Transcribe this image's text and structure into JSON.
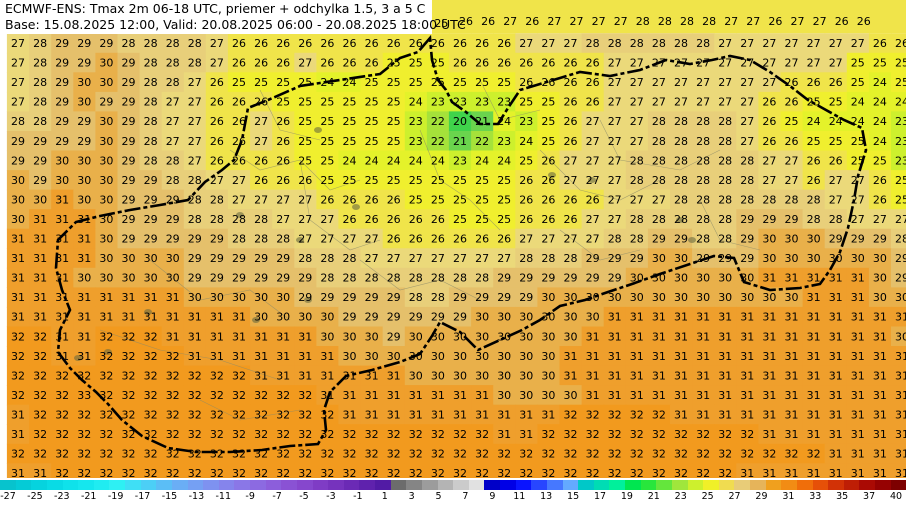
{
  "title": {
    "line1": "ECMWF-ENS: Tmax 2m 06-18 UTC, priemer + odchylka 1.5, 3 a 5 C",
    "line2": "Base: 15.08.2025 12:00, Valid: 20.08.2025 06:00 - 20.08.2025 18:00 UTC"
  },
  "colors": {
    "c20": "#40d34b",
    "c21": "#6ad44d",
    "c22": "#a5e23a",
    "c23": "#cdf02d",
    "c24": "#e4f22a",
    "c25": "#f0ef2e",
    "c26": "#f0e44a",
    "c27": "#ebd97a",
    "c28": "#e8cf7a",
    "c29": "#e5c06b",
    "c30": "#e9b04a",
    "c31": "#ef9f2c",
    "c32": "#f29a1e",
    "border": "#000000",
    "district": "#8a8a6a",
    "forest": "#6b6b40"
  },
  "legend": {
    "colors": [
      "#07c3cd",
      "#05cbd6",
      "#06d3de",
      "#09dbe5",
      "#0fe2ea",
      "#15e7ee",
      "#20ecf1",
      "#2ef0f3",
      "#3fdff5",
      "#4ccff6",
      "#5bbef6",
      "#6aaef5",
      "#75a0f3",
      "#7e92f0",
      "#8584ec",
      "#8a77e7",
      "#8c6ae1",
      "#8c5edb",
      "#8a52d4",
      "#8647cd",
      "#7f3cc5",
      "#7633bd",
      "#6b2ab5",
      "#5f22ad",
      "#521ba5",
      "#6c6c6c",
      "#858585",
      "#9c9c9c",
      "#b4b4b4",
      "#cbcbcb",
      "#e1e1e1",
      "#0000c8",
      "#0000e6",
      "#0a14ff",
      "#2846ff",
      "#4678ff",
      "#64aaff",
      "#00c8c8",
      "#00dcb4",
      "#00f09b",
      "#00e650",
      "#28e63c",
      "#64e63c",
      "#a0e63c",
      "#cdf02d",
      "#f0f028",
      "#f0dc50",
      "#e8cc78",
      "#e6b45a",
      "#f0a01e",
      "#f28c14",
      "#f06e0a",
      "#e65008",
      "#d23206",
      "#be1e05",
      "#aa0a04",
      "#960202",
      "#7d0000"
    ],
    "labels": [
      "-27",
      "-25",
      "-23",
      "-21",
      "-19",
      "-17",
      "-15",
      "-13",
      "-11",
      "-9",
      "-7",
      "-5",
      "-3",
      "-1",
      "1",
      "3",
      "5",
      "7",
      "9",
      "11",
      "13",
      "15",
      "17",
      "19",
      "21",
      "23",
      "25",
      "27",
      "29",
      "31",
      "33",
      "35",
      "37",
      "40"
    ]
  },
  "grid": {
    "rows": [
      [
        27,
        28,
        29,
        29,
        29,
        28,
        28,
        28,
        28,
        27,
        26,
        26,
        26,
        26,
        26,
        26,
        26,
        26,
        26,
        26,
        26,
        26,
        26,
        27,
        27,
        27,
        28,
        28,
        28,
        28,
        28,
        28,
        27,
        27,
        27,
        27,
        27,
        27,
        27,
        26,
        26
      ],
      [
        27,
        28,
        29,
        29,
        30,
        29,
        28,
        28,
        28,
        27,
        26,
        26,
        26,
        27,
        26,
        26,
        26,
        25,
        25,
        25,
        26,
        26,
        26,
        26,
        26,
        26,
        26,
        27,
        27,
        27,
        27,
        27,
        27,
        27,
        27,
        27,
        27,
        27,
        25,
        25,
        25
      ],
      [
        27,
        28,
        29,
        30,
        30,
        29,
        28,
        28,
        27,
        26,
        25,
        25,
        25,
        25,
        24,
        24,
        25,
        25,
        25,
        25,
        25,
        25,
        25,
        26,
        26,
        26,
        26,
        27,
        27,
        27,
        27,
        27,
        27,
        27,
        27,
        26,
        26,
        26,
        25,
        24,
        25
      ],
      [
        27,
        28,
        29,
        30,
        29,
        29,
        28,
        27,
        27,
        26,
        26,
        26,
        25,
        25,
        25,
        25,
        25,
        25,
        24,
        23,
        23,
        23,
        23,
        25,
        25,
        26,
        26,
        27,
        27,
        27,
        27,
        27,
        27,
        27,
        26,
        26,
        25,
        25,
        24,
        24,
        24
      ],
      [
        28,
        28,
        29,
        29,
        30,
        29,
        28,
        27,
        27,
        26,
        26,
        27,
        26,
        25,
        25,
        25,
        25,
        25,
        23,
        22,
        20,
        21,
        24,
        23,
        25,
        26,
        27,
        27,
        27,
        28,
        28,
        28,
        28,
        27,
        26,
        25,
        24,
        24,
        24,
        24,
        23
      ],
      [
        29,
        29,
        29,
        29,
        30,
        29,
        28,
        27,
        27,
        26,
        26,
        27,
        26,
        25,
        25,
        25,
        25,
        25,
        23,
        22,
        21,
        22,
        23,
        24,
        25,
        26,
        27,
        27,
        27,
        28,
        28,
        28,
        28,
        27,
        26,
        26,
        25,
        25,
        25,
        24,
        23
      ],
      [
        29,
        29,
        30,
        30,
        30,
        29,
        28,
        28,
        27,
        26,
        26,
        26,
        26,
        25,
        25,
        24,
        24,
        24,
        24,
        24,
        23,
        24,
        24,
        25,
        26,
        27,
        27,
        27,
        28,
        28,
        28,
        28,
        28,
        28,
        27,
        27,
        26,
        26,
        25,
        25,
        23
      ],
      [
        30,
        29,
        30,
        30,
        30,
        29,
        29,
        28,
        28,
        27,
        27,
        26,
        26,
        26,
        25,
        25,
        25,
        25,
        25,
        25,
        25,
        25,
        25,
        26,
        26,
        27,
        27,
        27,
        28,
        28,
        28,
        28,
        28,
        28,
        27,
        27,
        26,
        27,
        27,
        26,
        25
      ],
      [
        30,
        30,
        31,
        30,
        30,
        29,
        29,
        29,
        28,
        28,
        27,
        27,
        27,
        27,
        26,
        26,
        26,
        26,
        25,
        25,
        25,
        25,
        25,
        26,
        26,
        26,
        26,
        27,
        27,
        27,
        28,
        28,
        28,
        28,
        28,
        28,
        28,
        27,
        27,
        26,
        25
      ],
      [
        30,
        31,
        31,
        31,
        30,
        29,
        29,
        29,
        28,
        28,
        28,
        28,
        27,
        27,
        27,
        26,
        26,
        26,
        26,
        26,
        25,
        25,
        25,
        26,
        26,
        26,
        27,
        27,
        28,
        28,
        28,
        28,
        28,
        29,
        29,
        29,
        28,
        28,
        27,
        27,
        27
      ],
      [
        31,
        31,
        31,
        31,
        30,
        29,
        29,
        29,
        29,
        29,
        28,
        28,
        28,
        27,
        27,
        27,
        27,
        26,
        26,
        26,
        26,
        26,
        26,
        27,
        27,
        27,
        27,
        28,
        28,
        29,
        29,
        28,
        28,
        29,
        30,
        30,
        30,
        29,
        29,
        29,
        28
      ],
      [
        31,
        31,
        31,
        31,
        30,
        30,
        30,
        30,
        29,
        29,
        29,
        29,
        29,
        28,
        28,
        28,
        27,
        27,
        27,
        27,
        27,
        27,
        27,
        28,
        28,
        28,
        29,
        29,
        29,
        30,
        30,
        29,
        29,
        29,
        30,
        30,
        30,
        30,
        30,
        30,
        29
      ],
      [
        31,
        31,
        31,
        30,
        30,
        30,
        30,
        30,
        29,
        29,
        29,
        29,
        29,
        29,
        28,
        28,
        28,
        28,
        28,
        28,
        28,
        28,
        29,
        29,
        29,
        29,
        29,
        29,
        30,
        30,
        30,
        30,
        30,
        30,
        31,
        31,
        31,
        31,
        31,
        30,
        29
      ],
      [
        31,
        31,
        31,
        31,
        31,
        31,
        31,
        31,
        30,
        30,
        30,
        30,
        30,
        29,
        29,
        29,
        29,
        29,
        28,
        28,
        29,
        29,
        29,
        29,
        30,
        30,
        30,
        30,
        30,
        30,
        30,
        30,
        30,
        30,
        30,
        30,
        31,
        31,
        31,
        30,
        30
      ],
      [
        31,
        31,
        31,
        31,
        31,
        31,
        31,
        31,
        31,
        31,
        31,
        30,
        30,
        30,
        30,
        29,
        29,
        29,
        29,
        29,
        29,
        30,
        30,
        30,
        30,
        30,
        30,
        31,
        31,
        31,
        31,
        31,
        31,
        31,
        31,
        31,
        31,
        31,
        31,
        31,
        31
      ],
      [
        32,
        32,
        31,
        31,
        32,
        32,
        32,
        31,
        31,
        31,
        31,
        31,
        31,
        31,
        30,
        30,
        30,
        29,
        30,
        30,
        30,
        30,
        30,
        30,
        30,
        30,
        31,
        31,
        31,
        31,
        31,
        31,
        31,
        31,
        31,
        31,
        31,
        31,
        31,
        31,
        30
      ],
      [
        32,
        32,
        31,
        31,
        32,
        32,
        32,
        32,
        31,
        31,
        31,
        31,
        31,
        31,
        31,
        30,
        30,
        30,
        30,
        30,
        30,
        30,
        30,
        30,
        30,
        31,
        31,
        31,
        31,
        31,
        31,
        31,
        31,
        31,
        31,
        31,
        31,
        31,
        31,
        31,
        31
      ],
      [
        32,
        32,
        32,
        32,
        32,
        32,
        32,
        32,
        32,
        32,
        32,
        31,
        31,
        31,
        31,
        31,
        31,
        31,
        30,
        30,
        30,
        30,
        30,
        30,
        30,
        31,
        31,
        31,
        31,
        31,
        31,
        31,
        31,
        31,
        31,
        31,
        31,
        31,
        31,
        31,
        31
      ],
      [
        32,
        32,
        32,
        33,
        32,
        32,
        32,
        32,
        32,
        32,
        32,
        32,
        32,
        32,
        31,
        31,
        31,
        31,
        31,
        31,
        31,
        31,
        30,
        30,
        30,
        30,
        31,
        31,
        31,
        31,
        31,
        31,
        31,
        31,
        31,
        31,
        31,
        31,
        31,
        31,
        31
      ],
      [
        31,
        32,
        32,
        32,
        32,
        32,
        32,
        32,
        32,
        32,
        32,
        32,
        32,
        32,
        32,
        31,
        31,
        31,
        31,
        31,
        31,
        31,
        31,
        31,
        31,
        32,
        32,
        32,
        32,
        32,
        31,
        31,
        31,
        31,
        31,
        31,
        31,
        31,
        31,
        31,
        31
      ],
      [
        31,
        32,
        32,
        32,
        32,
        32,
        32,
        32,
        32,
        32,
        32,
        32,
        32,
        32,
        32,
        32,
        32,
        32,
        32,
        32,
        32,
        32,
        31,
        31,
        32,
        32,
        32,
        32,
        32,
        32,
        32,
        32,
        32,
        32,
        31,
        31,
        31,
        31,
        31,
        31,
        31
      ],
      [
        32,
        32,
        32,
        32,
        32,
        32,
        32,
        32,
        32,
        32,
        32,
        32,
        32,
        32,
        32,
        32,
        32,
        32,
        32,
        32,
        32,
        32,
        32,
        32,
        32,
        32,
        32,
        32,
        32,
        32,
        32,
        32,
        32,
        32,
        32,
        32,
        32,
        31,
        31,
        31,
        31
      ],
      [
        31,
        31,
        32,
        32,
        32,
        32,
        32,
        32,
        32,
        32,
        32,
        32,
        32,
        32,
        32,
        32,
        32,
        32,
        32,
        32,
        32,
        32,
        32,
        32,
        32,
        32,
        32,
        32,
        32,
        32,
        32,
        32,
        32,
        31,
        31,
        31,
        31,
        31,
        31,
        31,
        31
      ]
    ],
    "top_right_row": [
      26,
      26,
      27,
      26,
      27,
      27,
      27,
      27,
      28,
      28,
      28,
      28,
      27,
      27,
      26,
      27,
      27,
      26,
      26
    ],
    "top_middle_row": [
      25,
      25,
      25,
      25,
      25
    ]
  }
}
